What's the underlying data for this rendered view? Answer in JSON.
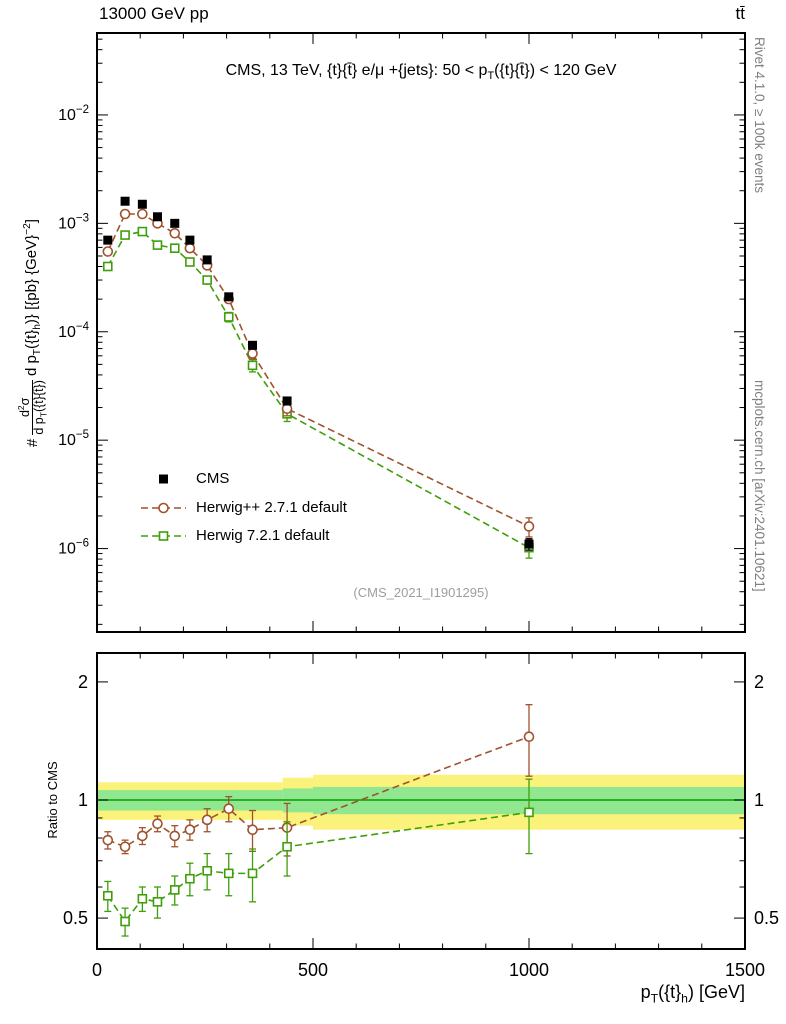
{
  "header": {
    "left": "13000 GeV pp",
    "right": "tt̄"
  },
  "side_texts": {
    "top_right": "Rivet 4.1.0, ≥ 100k events",
    "bottom_right": "mcplots.cern.ch [arXiv:2401.10621]"
  },
  "watermark": "(CMS_2021_I1901295)",
  "main_panel": {
    "title_html": "CMS, 13 TeV, {t}{t̄} e/μ +{jets}: 50 &lt; p<sub>T</sub>({t}{t̄}) &lt; 120 GeV",
    "ylabel_prefix": "#",
    "ylabel_numerator_html": "d<sup>2</sup>σ",
    "ylabel_denominator_html": "d p<sub>T</sub>({t}{t̄})",
    "ylabel_suffix_html": "d p<sub>T</sub>({t}<sub>h</sub>)} [{pb} {GeV}<sup>−2</sup>]"
  },
  "ratio_panel": {
    "ylabel": "Ratio to CMS"
  },
  "xaxis": {
    "label_html": "p<sub>T</sub>({t}<sub>h</sub>) [GeV]"
  },
  "chart_data": [
    {
      "type": "scatter",
      "panel": "main",
      "yscale": "log",
      "ylim": [
        1.7e-07,
        0.057
      ],
      "ytick_exponents": [
        -2,
        -3,
        -4,
        -5,
        -6
      ],
      "x": [
        25,
        65,
        105,
        140,
        180,
        215,
        255,
        305,
        360,
        440,
        1000
      ],
      "series": [
        {
          "name": "CMS",
          "marker": "filled-square",
          "color": "#000000",
          "line": "none",
          "values": [
            0.0007,
            0.0016,
            0.0015,
            0.00115,
            0.001,
            0.0007,
            0.00046,
            0.00021,
            7.5e-05,
            2.3e-05,
            1.1e-06
          ],
          "rel_err": [
            0.04,
            0.03,
            0.03,
            0.03,
            0.03,
            0.04,
            0.04,
            0.05,
            0.06,
            0.08,
            0.12
          ]
        },
        {
          "name": "Herwig++ 2.7.1 default",
          "marker": "open-circle",
          "color": "#a0522d",
          "line": "dashed",
          "values": [
            0.00055,
            0.00122,
            0.00122,
            0.001,
            0.00081,
            0.00059,
            0.00041,
            0.0002,
            6.3e-05,
            1.95e-05,
            1.6e-06
          ],
          "rel_err": [
            0.05,
            0.04,
            0.04,
            0.05,
            0.05,
            0.06,
            0.06,
            0.07,
            0.11,
            0.14,
            0.2
          ]
        },
        {
          "name": "Herwig 7.2.1 default",
          "marker": "open-square",
          "color": "#3f9e0b",
          "line": "dashed",
          "values": [
            0.0004,
            0.00078,
            0.00084,
            0.00063,
            0.00059,
            0.00044,
            0.0003,
            0.000137,
            4.9e-05,
            1.75e-05,
            1.02e-06
          ],
          "rel_err": [
            0.07,
            0.05,
            0.05,
            0.06,
            0.06,
            0.07,
            0.08,
            0.1,
            0.13,
            0.15,
            0.2
          ]
        }
      ]
    },
    {
      "type": "ratio",
      "panel": "ratio",
      "yscale": "log",
      "ylim": [
        0.417,
        2.37
      ],
      "yticks": [
        0.5,
        1,
        2
      ],
      "yticks_minor": [
        0.6,
        0.7,
        0.8,
        0.9
      ],
      "xlim": [
        0,
        1500
      ],
      "xticks": [
        0,
        500,
        1000,
        1500
      ],
      "x_minor_step": 100,
      "bands": [
        {
          "x0": 0,
          "x1": 430,
          "yellow": [
            0.89,
            1.11
          ],
          "green": [
            0.94,
            1.06
          ]
        },
        {
          "x0": 430,
          "x1": 500,
          "yellow": [
            0.86,
            1.14
          ],
          "green": [
            0.93,
            1.07
          ]
        },
        {
          "x0": 500,
          "x1": 1500,
          "yellow": [
            0.84,
            1.16
          ],
          "green": [
            0.92,
            1.08
          ]
        }
      ],
      "band_colors": {
        "yellow": "#fbf27c",
        "green": "#90e790"
      },
      "centerline": {
        "value": 1.0,
        "color": "#00a000"
      },
      "x": [
        25,
        65,
        105,
        140,
        180,
        215,
        255,
        305,
        360,
        440,
        1000
      ],
      "series": [
        {
          "name": "Herwig++ 2.7.1 default",
          "marker": "open-circle",
          "color": "#a0522d",
          "line": "dashed",
          "values": [
            0.79,
            0.76,
            0.81,
            0.87,
            0.81,
            0.84,
            0.89,
            0.95,
            0.84,
            0.85,
            1.45
          ],
          "err": [
            0.04,
            0.03,
            0.04,
            0.04,
            0.05,
            0.05,
            0.06,
            0.07,
            0.1,
            0.13,
            0.3
          ]
        },
        {
          "name": "Herwig 7.2.1 default",
          "marker": "open-square",
          "color": "#3f9e0b",
          "line": "dashed",
          "values": [
            0.57,
            0.49,
            0.56,
            0.55,
            0.59,
            0.63,
            0.66,
            0.65,
            0.65,
            0.76,
            0.93
          ],
          "err": [
            0.05,
            0.04,
            0.04,
            0.05,
            0.05,
            0.06,
            0.07,
            0.08,
            0.1,
            0.12,
            0.2
          ]
        }
      ]
    }
  ]
}
